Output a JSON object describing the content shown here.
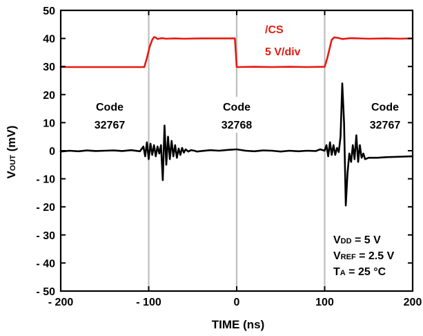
{
  "chart_data": {
    "type": "line",
    "xlabel": "TIME (ns)",
    "ylabel": {
      "main": "V",
      "sub": "OUT",
      "rest": " (mV)"
    },
    "xlim": [
      -200,
      200
    ],
    "ylim": [
      -50,
      50
    ],
    "x_ticks": [
      -200,
      -100,
      0,
      100,
      200
    ],
    "x_tick_labels": [
      "- 200",
      "- 100",
      "0",
      "100",
      "200"
    ],
    "y_ticks": [
      50,
      40,
      30,
      20,
      10,
      0,
      -10,
      -20,
      -30,
      -40,
      -50
    ],
    "y_tick_labels": [
      "50",
      "40",
      "30",
      "20",
      "10",
      "0",
      "- 10",
      "- 20",
      "- 30",
      "- 40",
      "- 50"
    ],
    "grid": {
      "vertical_at": [
        -100,
        0,
        100
      ],
      "horizontal": false
    },
    "colors": {
      "cs": "#e8190f",
      "vout": "#000000",
      "grid": "#bdbdbd"
    },
    "series": [
      {
        "name": "/CS",
        "color": "#e8190f",
        "x": [
          -200,
          -105,
          -102,
          -99,
          -96,
          -94,
          -92,
          -90,
          -85,
          -80,
          -70,
          -60,
          -40,
          -20,
          -2,
          -1,
          0,
          1,
          20,
          40,
          60,
          80,
          100,
          103,
          106,
          108,
          111,
          115,
          120,
          130,
          150,
          170,
          185,
          200
        ],
        "y": [
          29.8,
          29.8,
          33,
          37,
          39.5,
          40.5,
          40.3,
          39.8,
          40.1,
          39.9,
          40,
          39.9,
          40,
          40,
          40,
          35,
          29.8,
          29.8,
          29.9,
          29.8,
          29.9,
          29.8,
          29.9,
          33,
          37,
          39.5,
          40.4,
          40.2,
          39.8,
          40.1,
          39.9,
          40,
          39.9,
          40
        ]
      },
      {
        "name": "VOUT",
        "color": "#000000",
        "x": [
          -200,
          -190,
          -180,
          -170,
          -160,
          -150,
          -140,
          -130,
          -120,
          -110,
          -106,
          -104,
          -102,
          -100,
          -98,
          -96,
          -94,
          -92,
          -90,
          -88,
          -86,
          -84,
          -82,
          -80,
          -78,
          -76,
          -74,
          -72,
          -70,
          -68,
          -66,
          -64,
          -62,
          -60,
          -58,
          -55,
          -52,
          -48,
          -45,
          -40,
          -30,
          -20,
          -10,
          0,
          10,
          20,
          30,
          40,
          50,
          60,
          70,
          80,
          90,
          95,
          100,
          102,
          104,
          106,
          108,
          110,
          112,
          114,
          116,
          118,
          120,
          122,
          124,
          126,
          128,
          130,
          132,
          134,
          136,
          138,
          140,
          142,
          144,
          146,
          150,
          160,
          170,
          180,
          190,
          200
        ],
        "y": [
          -0.3,
          0,
          -0.2,
          0.1,
          -0.1,
          0,
          0.1,
          -0.1,
          0.2,
          -0.2,
          1.5,
          -2,
          3,
          -3,
          2.5,
          -1.5,
          2,
          -2,
          1.5,
          -1,
          2,
          -10.5,
          9,
          -5,
          5,
          -3,
          3.5,
          -2,
          2,
          -2.5,
          0.8,
          -1.5,
          1,
          -0.7,
          0.5,
          -0.3,
          0.2,
          0,
          -0.3,
          -0.1,
          0.2,
          0,
          0.3,
          0.5,
          0,
          -0.2,
          0.1,
          0,
          -0.3,
          0,
          -0.2,
          0,
          -0.1,
          0.5,
          0,
          2,
          -2,
          3,
          -1.5,
          2,
          -1.5,
          1,
          -0.5,
          5,
          24,
          10,
          -19.5,
          -8,
          -1,
          -4,
          2,
          -3,
          5.5,
          -4,
          2,
          -2.5,
          -1,
          -3,
          -2.5,
          -2.5,
          -2.3,
          -2.2,
          -2.1,
          -2
        ]
      }
    ],
    "annotations": {
      "cs_label": "/CS",
      "cs_scale": "5 V/div",
      "code_left_line1": "Code",
      "code_left_line2": "32767",
      "code_mid_line1": "Code",
      "code_mid_line2": "32768",
      "code_right_line1": "Code",
      "code_right_line2": "32767",
      "cond1": {
        "main": "V",
        "sub": "DD",
        "rest": " = 5 V"
      },
      "cond2": {
        "main": "V",
        "sub": "REF",
        "rest": " = 2.5 V"
      },
      "cond3": {
        "main": "T",
        "sub": "A",
        "rest": "  = 25 °C"
      }
    }
  }
}
